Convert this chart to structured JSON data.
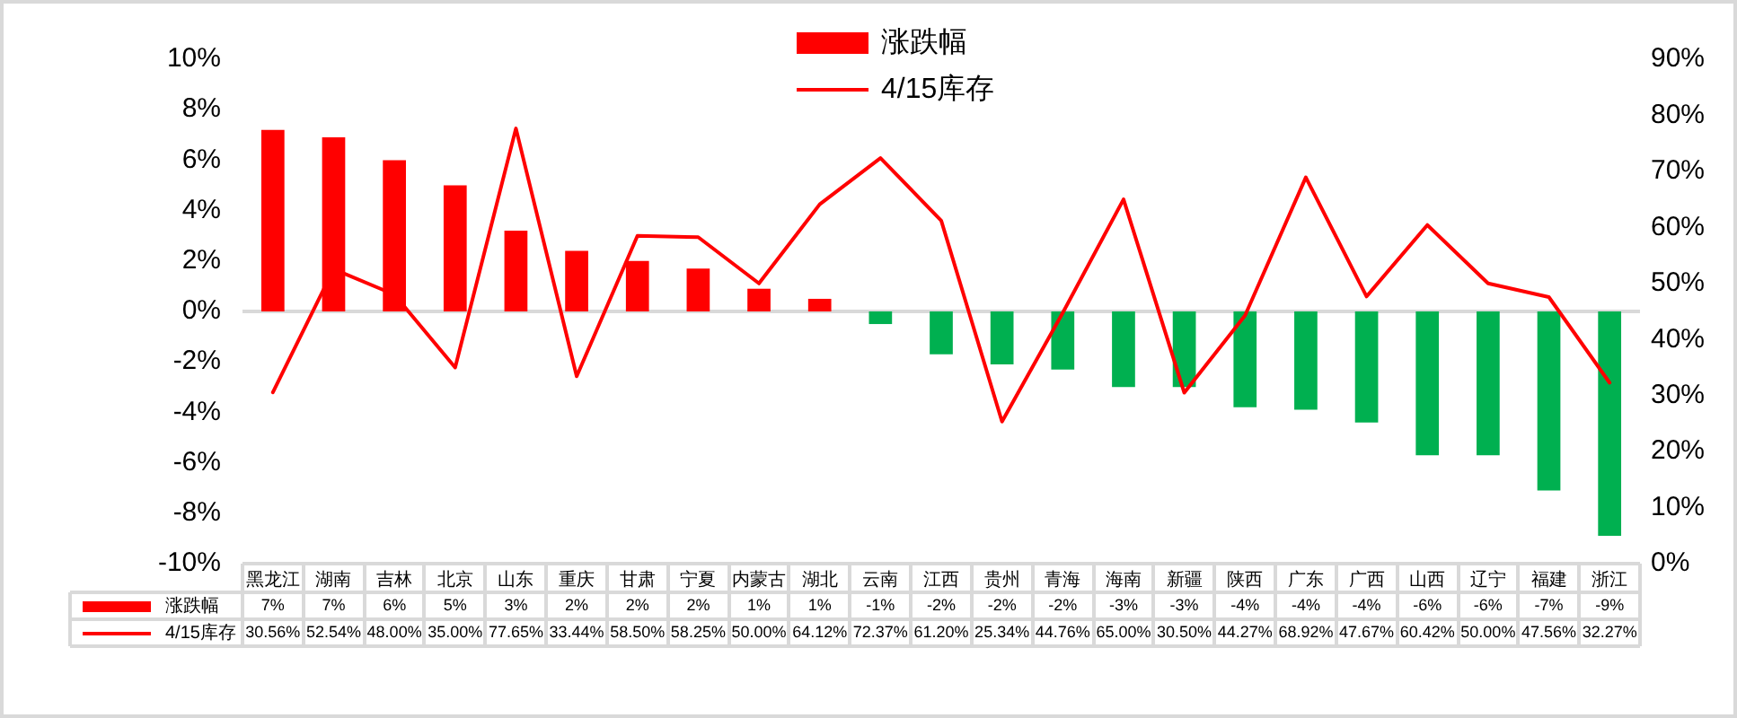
{
  "chart_data": {
    "type": "bar",
    "legend": "top",
    "marker": "none",
    "categories": [
      "黑龙江",
      "湖南",
      "吉林",
      "北京",
      "山东",
      "重庆",
      "甘肃",
      "宁夏",
      "内蒙古",
      "湖北",
      "云南",
      "江西",
      "贵州",
      "青海",
      "海南",
      "新疆",
      "陕西",
      "广东",
      "广西",
      "山西",
      "辽宁",
      "福建",
      "浙江"
    ],
    "series": [
      {
        "name": "涨跌幅",
        "color": "#ff0000",
        "colors": [
          "#ff0000",
          "#ff0000",
          "#ff0000",
          "#ff0000",
          "#ff0000",
          "#ff0000",
          "#ff0000",
          "#ff0000",
          "#ff0000",
          "#ff0000",
          "#00b050",
          "#00b050",
          "#00b050",
          "#00b050",
          "#00b050",
          "#00b050",
          "#00b050",
          "#00b050",
          "#00b050",
          "#00b050",
          "#00b050",
          "#00b050",
          "#00b050"
        ],
        "values": [
          7.2,
          6.9,
          6.0,
          5.0,
          3.2,
          2.4,
          2.0,
          1.7,
          0.9,
          0.5,
          -0.5,
          -1.7,
          -2.1,
          -2.3,
          -3.0,
          -3.0,
          -3.8,
          -3.9,
          -4.4,
          -5.7,
          -5.7,
          -7.1,
          -8.9
        ],
        "value_labels": [
          "7%",
          "7%",
          "6%",
          "5%",
          "3%",
          "2%",
          "2%",
          "2%",
          "1%",
          "1%",
          "-1%",
          "-2%",
          "-2%",
          "-2%",
          "-3%",
          "-3%",
          "-4%",
          "-4%",
          "-4%",
          "-6%",
          "-6%",
          "-7%",
          "-9%"
        ]
      },
      {
        "name": "4/15库存",
        "type": "line",
        "axis": "y2",
        "color": "#ff0000",
        "values": [
          30.56,
          52.54,
          48.0,
          35.0,
          77.65,
          33.44,
          58.5,
          58.25,
          50.0,
          64.12,
          72.37,
          61.2,
          25.34,
          44.76,
          65.0,
          30.5,
          44.27,
          68.92,
          47.67,
          60.42,
          50.0,
          47.56,
          32.27
        ],
        "value_labels": [
          "30.56%",
          "52.54%",
          "48.00%",
          "35.00%",
          "77.65%",
          "33.44%",
          "58.50%",
          "58.25%",
          "50.00%",
          "64.12%",
          "72.37%",
          "61.20%",
          "25.34%",
          "44.76%",
          "65.00%",
          "30.50%",
          "44.27%",
          "68.92%",
          "47.67%",
          "60.42%",
          "50.00%",
          "47.56%",
          "32.27%"
        ]
      }
    ],
    "ylim": [
      -10,
      10
    ],
    "yticks": [
      {
        "value": -10,
        "label": "-10%"
      },
      {
        "value": -8,
        "label": "-8%"
      },
      {
        "value": -6,
        "label": "-6%"
      },
      {
        "value": -4,
        "label": "-4%"
      },
      {
        "value": -2,
        "label": "-2%"
      },
      {
        "value": 0,
        "label": "0%"
      },
      {
        "value": 2,
        "label": "2%"
      },
      {
        "value": 4,
        "label": "4%"
      },
      {
        "value": 6,
        "label": "6%"
      },
      {
        "value": 8,
        "label": "8%"
      },
      {
        "value": 10,
        "label": "10%"
      }
    ],
    "y2lim": [
      0,
      90
    ],
    "y2ticks": [
      {
        "value": 0,
        "label": "0%"
      },
      {
        "value": 10,
        "label": "10%"
      },
      {
        "value": 20,
        "label": "20%"
      },
      {
        "value": 30,
        "label": "30%"
      },
      {
        "value": 40,
        "label": "40%"
      },
      {
        "value": 50,
        "label": "50%"
      },
      {
        "value": 60,
        "label": "60%"
      },
      {
        "value": 70,
        "label": "70%"
      },
      {
        "value": 80,
        "label": "80%"
      },
      {
        "value": 90,
        "label": "90%"
      }
    ]
  }
}
